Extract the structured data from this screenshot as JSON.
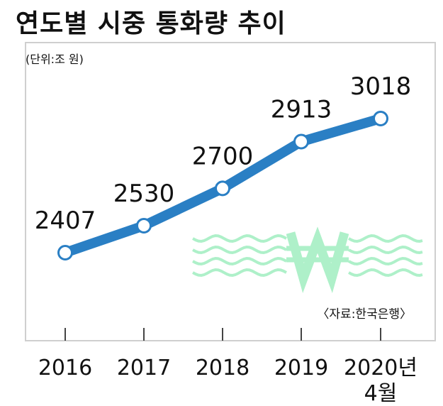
{
  "title": "연도별 시중 통화량 추이",
  "unit": "(단위:조 원)",
  "source": "〈자료:한국은행〉",
  "colors": {
    "line": "#2a7fc4",
    "frame": "#cfcfcf",
    "watermark": "#aef0c9"
  },
  "watermark_icon": "won-sign-icon",
  "chart_data": {
    "type": "line",
    "categories": [
      "2016",
      "2017",
      "2018",
      "2019",
      "2020년 4월"
    ],
    "category_labels": [
      [
        "2016"
      ],
      [
        "2017"
      ],
      [
        "2018"
      ],
      [
        "2019"
      ],
      [
        "2020년",
        "4월"
      ]
    ],
    "values": [
      2407,
      2530,
      2700,
      2913,
      3018
    ],
    "data_labels": [
      "2407",
      "2530",
      "2700",
      "2913",
      "3018"
    ],
    "ylabel": "단위:조 원",
    "grid": false,
    "legend": "none"
  }
}
